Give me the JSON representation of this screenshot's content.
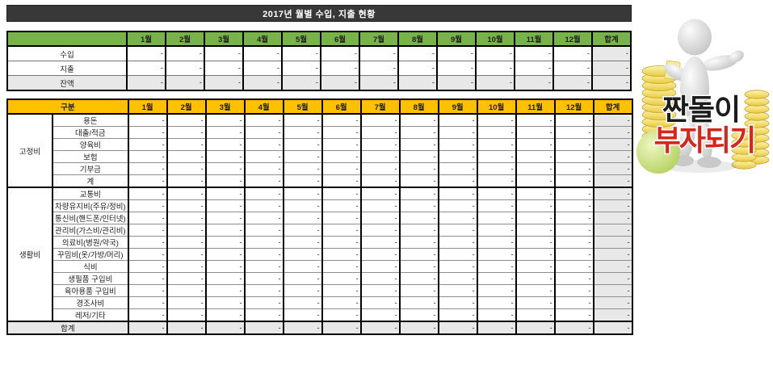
{
  "title": "2017년 월별 수입, 지출 현황",
  "months": [
    "1월",
    "2월",
    "3월",
    "4월",
    "5월",
    "6월",
    "7월",
    "8월",
    "9월",
    "10월",
    "11월",
    "12월"
  ],
  "total_label": "합계",
  "dash": "-",
  "summary_table": {
    "rows": [
      {
        "label": "수입",
        "shaded": false
      },
      {
        "label": "지출",
        "shaded": false
      },
      {
        "label": "잔액",
        "shaded": true
      }
    ]
  },
  "detail_table": {
    "header_label": "구분",
    "groups": [
      {
        "name": "고정비",
        "items": [
          "용돈",
          "대출/적금",
          "양육비",
          "보험",
          "기부금",
          "계"
        ]
      },
      {
        "name": "생활비",
        "items": [
          "교통비",
          "차량유지비(주유/정비)",
          "통신비(핸드폰/인터넷)",
          "관리비(가스비/관리비)",
          "의료비(병원/약국)",
          "꾸밈비(옷/가방/머리)",
          "식비",
          "생필품 구입비",
          "육아용품 구입비",
          "경조사비",
          "레저/기타"
        ]
      }
    ],
    "footer_label": "합계"
  },
  "illustration": {
    "line1": "짠돌이",
    "line2": "부자되기"
  },
  "colors": {
    "title_bar_bg": "#383838",
    "summary_header_green": "#77b34a",
    "detail_header_orange": "#ffc000",
    "shaded_cell_gray": "#e8e8e8",
    "slogan_black": "#1c1c1c",
    "slogan_red": "#d8251c",
    "coin_gold": "#eecf4a"
  }
}
